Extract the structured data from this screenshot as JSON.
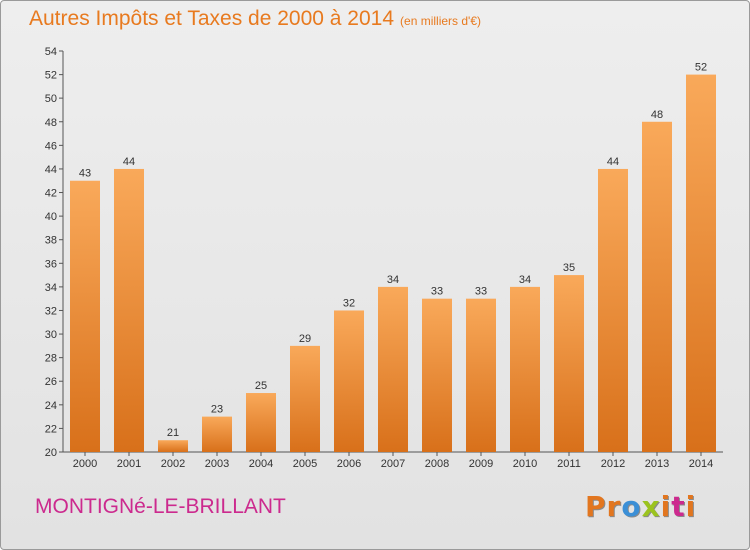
{
  "title": "Autres Impôts et Taxes de 2000 à 2014",
  "subtitle": "(en milliers d'€)",
  "commune": "MONTIGNé-LE-BRILLANT",
  "logo": {
    "text": "Proxiti",
    "letter_colors": [
      "#e2761f",
      "#e2761f",
      "#3b8fd6",
      "#9bc31f",
      "#e2761f",
      "#cc2a8e",
      "#e2761f"
    ]
  },
  "colors": {
    "bar_light": "#f9a95a",
    "bar_dark": "#d8701a",
    "title": "#e87a1f",
    "commune": "#cc2a8e",
    "axis": "#555555"
  },
  "chart_data": {
    "type": "bar",
    "categories": [
      "2000",
      "2001",
      "2002",
      "2003",
      "2004",
      "2005",
      "2006",
      "2007",
      "2008",
      "2009",
      "2010",
      "2011",
      "2012",
      "2013",
      "2014"
    ],
    "values": [
      43,
      44,
      21,
      23,
      25,
      29,
      32,
      34,
      33,
      33,
      34,
      35,
      44,
      48,
      52
    ],
    "ylim": [
      20,
      54
    ],
    "yticks": [
      20,
      22,
      24,
      26,
      28,
      30,
      32,
      34,
      36,
      38,
      40,
      42,
      44,
      46,
      48,
      50,
      52,
      54
    ],
    "grid": false,
    "data_labels": true
  }
}
